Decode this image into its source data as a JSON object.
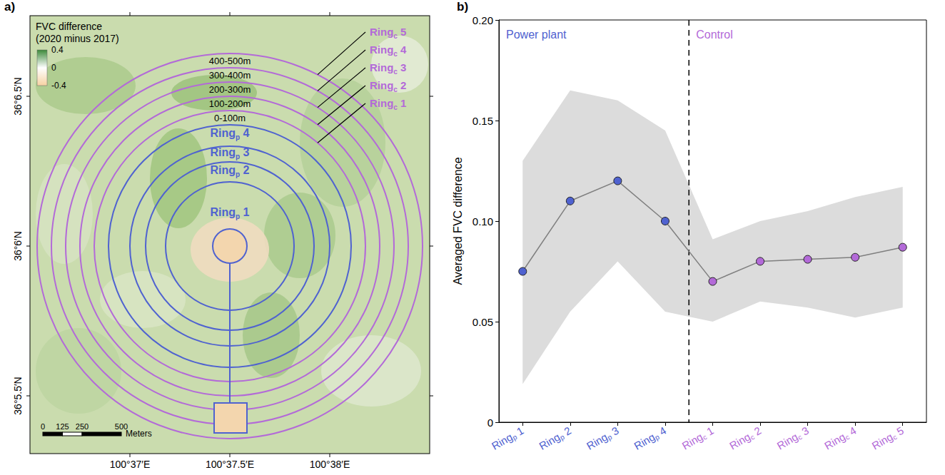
{
  "panel_labels": [
    "a)",
    "b)"
  ],
  "map": {
    "colorbar": {
      "title": [
        "FVC difference",
        "(2020 minus 2017)"
      ],
      "range": [
        -0.4,
        0.4
      ],
      "ticks": [
        0.4,
        0,
        -0.4
      ],
      "colors": [
        "#3d8a3a",
        "#ffffff",
        "#f6d2a2"
      ]
    },
    "power_plant_rings": [
      "Ringp 1",
      "Ringp 2",
      "Ringp 3",
      "Ringp 4"
    ],
    "power_plant_color": "#4f62d0",
    "control_rings": [
      "Ringc 1",
      "Ringc 2",
      "Ringc 3",
      "Ringc 4",
      "Ringc 5"
    ],
    "control_color": "#b36ad8",
    "control_distances": [
      "0-100m",
      "100-200m",
      "200-300m",
      "300-400m",
      "400-500m"
    ],
    "longitudes": [
      "100°37′E",
      "100°37.5′E",
      "100°38′E"
    ],
    "latitudes": [
      "36°5.5′N",
      "36°6′N",
      "36°6.5′N"
    ],
    "scale_bar": {
      "ticks": [
        0,
        125,
        250,
        500
      ],
      "unit": "Meters"
    }
  },
  "chart_data": {
    "type": "line",
    "categories": [
      "Ringp 1",
      "Ringp 2",
      "Ringp 3",
      "Ringp 4",
      "Ringc 1",
      "Ringc 2",
      "Ringc 3",
      "Ringc 4",
      "Ringc 5"
    ],
    "values": [
      0.075,
      0.11,
      0.12,
      0.1,
      0.07,
      0.08,
      0.081,
      0.082,
      0.087
    ],
    "band": {
      "lower": [
        0.019,
        0.055,
        0.08,
        0.055,
        0.05,
        0.06,
        0.057,
        0.052,
        0.057
      ],
      "upper": [
        0.13,
        0.165,
        0.16,
        0.145,
        0.091,
        0.1,
        0.105,
        0.112,
        0.117
      ],
      "color": "#dcdcdc"
    },
    "color": "#7f7f7f",
    "colors": [
      "#4f62d0",
      "#4f62d0",
      "#4f62d0",
      "#4f62d0",
      "#b36ad8",
      "#b36ad8",
      "#b36ad8",
      "#b36ad8",
      "#b36ad8"
    ],
    "marker": "circle",
    "y_label": "Averaged FVC difference",
    "ylim": [
      0,
      0.2
    ],
    "yticks": [
      0,
      0.05,
      {
        "value": 0.1,
        "label": "0.10"
      },
      {
        "value": 0.15,
        "label": "0.15"
      },
      {
        "value": 0.2,
        "label": "0.20"
      }
    ],
    "grid": false,
    "groups": [
      {
        "label": "Power plant",
        "color": "#4f62d0",
        "first": "Ringp 1",
        "last": "Ringp 4"
      },
      {
        "label": "Control",
        "color": "#b36ad8",
        "first": "Ringc 1",
        "last": "Ringc 5"
      }
    ]
  }
}
